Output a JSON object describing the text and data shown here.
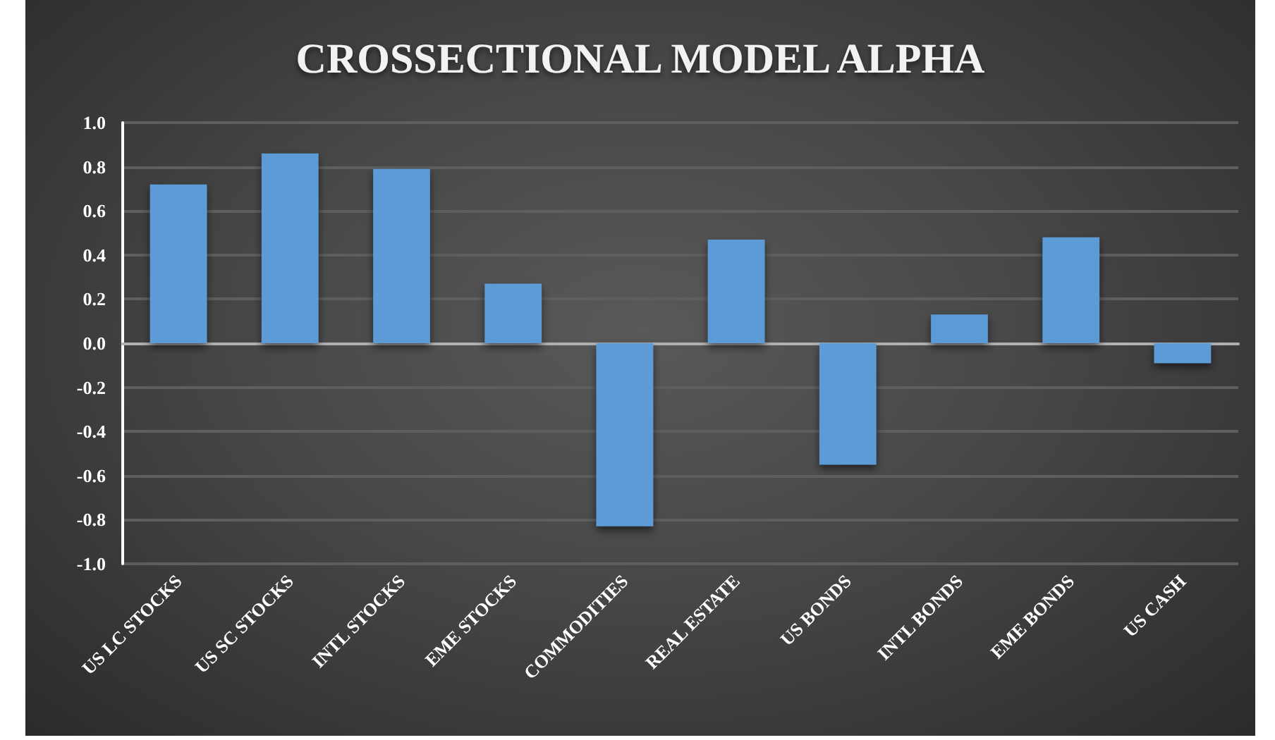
{
  "chart_data": {
    "type": "bar",
    "title": "CROSSECTIONAL MODEL ALPHA",
    "categories": [
      "US LC STOCKS",
      "US SC STOCKS",
      "INTL STOCKS",
      "EME STOCKS",
      "COMMODITIES",
      "REAL ESTATE",
      "US BONDS",
      "INTL BONDS",
      "EME BONDS",
      "US CASH"
    ],
    "values": [
      0.72,
      0.86,
      0.79,
      0.27,
      -0.83,
      0.47,
      -0.55,
      0.13,
      0.48,
      -0.09
    ],
    "color": "#5b9bd5",
    "ylim": [
      -1,
      1
    ],
    "yticks": [
      {
        "value": -1,
        "label": "-1.0"
      },
      -0.8,
      -0.6,
      -0.4,
      -0.2,
      {
        "value": 0,
        "label": "0.0"
      },
      0.2,
      0.4,
      0.6,
      0.8,
      {
        "value": 1,
        "label": "1.0"
      }
    ],
    "grid": "y"
  }
}
